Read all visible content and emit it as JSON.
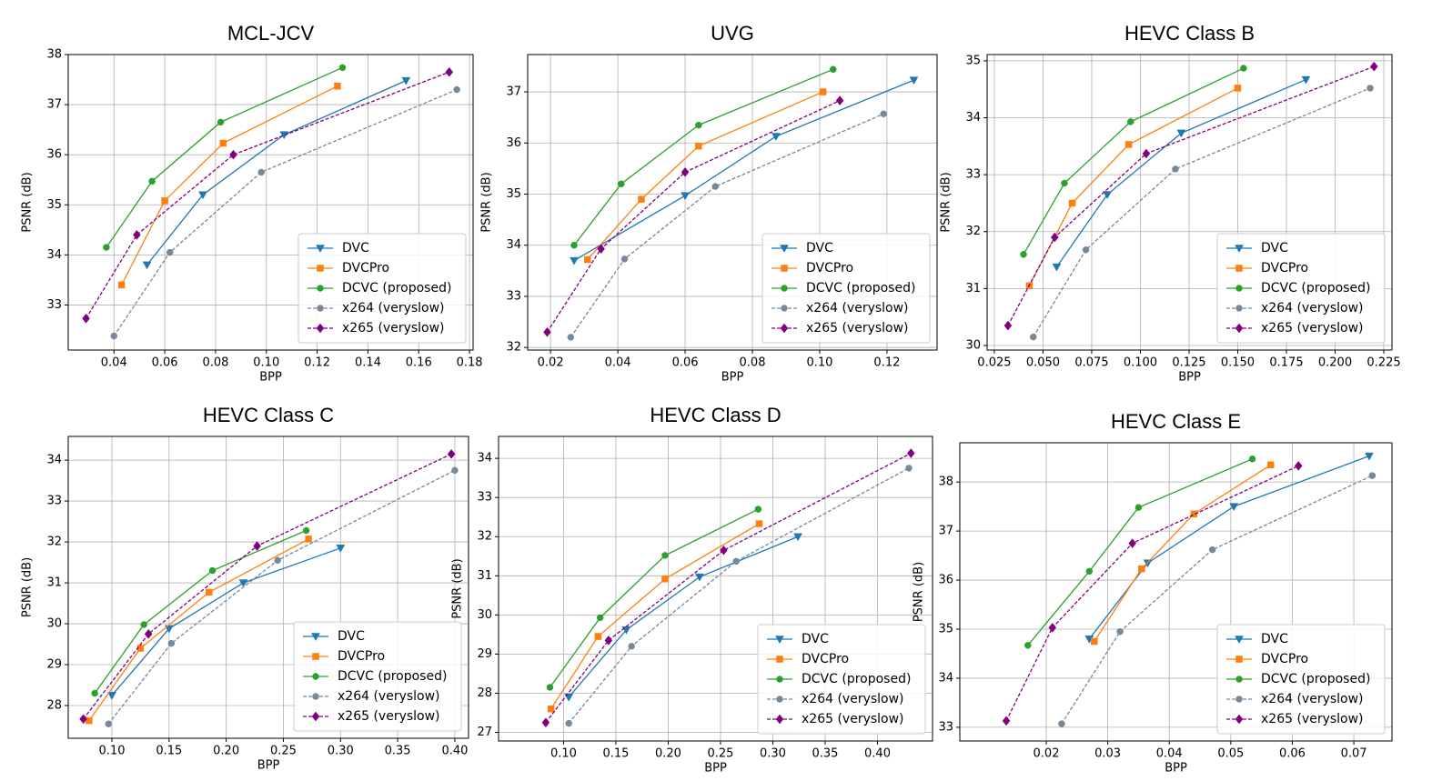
{
  "chart_data": [
    {
      "type": "line",
      "title": "MCL-JCV",
      "xlabel": "BPP",
      "ylabel": "PSNR (dB)",
      "grid": true,
      "legend": "lower right",
      "xlim": [
        0.022,
        0.1814
      ],
      "ylim": [
        32.1,
        38.0
      ],
      "xticks": [
        0.04,
        0.06,
        0.08,
        {
          "value": 0.1,
          "label": "0.10"
        },
        0.12,
        0.14,
        0.16,
        0.18
      ],
      "yticks": [
        33,
        34,
        35,
        36,
        37,
        38
      ],
      "series": [
        {
          "name": "DVC",
          "color": "#1f77b4",
          "marker": "triangle-down",
          "linestyle": "solid",
          "x": [
            0.053,
            0.075,
            0.107,
            0.155
          ],
          "values": [
            33.8,
            35.2,
            36.4,
            37.48
          ]
        },
        {
          "name": "DVCPro",
          "color": "#ff7f0e",
          "marker": "square",
          "linestyle": "solid",
          "x": [
            0.043,
            0.06,
            0.083,
            0.128
          ],
          "values": [
            33.4,
            35.08,
            36.23,
            37.37
          ]
        },
        {
          "name": "DCVC (proposed)",
          "color": "#2ca02c",
          "marker": "circle",
          "linestyle": "solid",
          "x": [
            0.037,
            0.055,
            0.082,
            0.13
          ],
          "values": [
            34.15,
            35.47,
            36.65,
            37.74
          ]
        },
        {
          "name": "x264 (veryslow)",
          "color": "#778899",
          "marker": "circle",
          "linestyle": "dashed",
          "x": [
            0.04,
            0.062,
            0.098,
            0.175
          ],
          "values": [
            32.38,
            34.05,
            35.65,
            37.3
          ]
        },
        {
          "name": "x265 (veryslow)",
          "color": "#800080",
          "marker": "diamond",
          "linestyle": "dashed",
          "x": [
            0.029,
            0.049,
            0.087,
            0.172
          ],
          "values": [
            32.73,
            34.4,
            36.0,
            37.65
          ]
        }
      ]
    },
    {
      "type": "line",
      "title": "UVG",
      "xlabel": "BPP",
      "ylabel": "PSNR (dB)",
      "grid": true,
      "legend": "lower right",
      "xlim": [
        0.0132,
        0.1349
      ],
      "ylim": [
        31.95,
        37.73
      ],
      "xticks": [
        0.02,
        0.04,
        0.06,
        0.08,
        {
          "value": 0.1,
          "label": "0.10"
        },
        0.12
      ],
      "yticks": [
        32,
        33,
        34,
        35,
        36,
        37
      ],
      "series": [
        {
          "name": "DVC",
          "color": "#1f77b4",
          "marker": "triangle-down",
          "linestyle": "solid",
          "x": [
            0.027,
            0.06,
            0.087,
            0.128
          ],
          "values": [
            33.7,
            34.97,
            36.13,
            37.23
          ]
        },
        {
          "name": "DVCPro",
          "color": "#ff7f0e",
          "marker": "square",
          "linestyle": "solid",
          "x": [
            0.031,
            0.047,
            0.064,
            0.101
          ],
          "values": [
            33.72,
            34.9,
            35.94,
            37.0
          ]
        },
        {
          "name": "DCVC (proposed)",
          "color": "#2ca02c",
          "marker": "circle",
          "linestyle": "solid",
          "x": [
            0.027,
            0.041,
            0.064,
            0.104
          ],
          "values": [
            34.0,
            35.2,
            36.35,
            37.44
          ]
        },
        {
          "name": "x264 (veryslow)",
          "color": "#778899",
          "marker": "circle",
          "linestyle": "dashed",
          "x": [
            0.026,
            0.042,
            0.069,
            0.119
          ],
          "values": [
            32.2,
            33.73,
            35.15,
            36.57
          ]
        },
        {
          "name": "x265 (veryslow)",
          "color": "#800080",
          "marker": "diamond",
          "linestyle": "dashed",
          "x": [
            0.019,
            0.035,
            0.06,
            0.106
          ],
          "values": [
            32.3,
            33.93,
            35.43,
            36.83
          ]
        }
      ]
    },
    {
      "type": "line",
      "title": "HEVC Class B",
      "xlabel": "BPP",
      "ylabel": "PSNR (dB)",
      "grid": true,
      "legend": "lower right",
      "xlim": [
        0.0213,
        0.2292
      ],
      "ylim": [
        29.92,
        35.11
      ],
      "xticks": [
        0.025,
        {
          "value": 0.05,
          "label": "0.050"
        },
        0.075,
        {
          "value": 0.1,
          "label": "0.100"
        },
        0.125,
        {
          "value": 0.15,
          "label": "0.150"
        },
        0.175,
        {
          "value": 0.2,
          "label": "0.200"
        },
        0.225
      ],
      "yticks": [
        30,
        31,
        32,
        33,
        34,
        35
      ],
      "series": [
        {
          "name": "DVC",
          "color": "#1f77b4",
          "marker": "triangle-down",
          "linestyle": "solid",
          "x": [
            0.057,
            0.083,
            0.121,
            0.185
          ],
          "values": [
            31.38,
            32.65,
            33.73,
            34.67
          ]
        },
        {
          "name": "DVCPro",
          "color": "#ff7f0e",
          "marker": "square",
          "linestyle": "solid",
          "x": [
            0.043,
            0.065,
            0.094,
            0.15
          ],
          "values": [
            31.05,
            32.5,
            33.53,
            34.52
          ]
        },
        {
          "name": "DCVC (proposed)",
          "color": "#2ca02c",
          "marker": "circle",
          "linestyle": "solid",
          "x": [
            0.04,
            0.061,
            0.095,
            0.153
          ],
          "values": [
            31.6,
            32.85,
            33.93,
            34.87
          ]
        },
        {
          "name": "x264 (veryslow)",
          "color": "#778899",
          "marker": "circle",
          "linestyle": "dashed",
          "x": [
            0.045,
            0.072,
            0.118,
            0.218
          ],
          "values": [
            30.15,
            31.68,
            33.1,
            34.52
          ]
        },
        {
          "name": "x265 (veryslow)",
          "color": "#800080",
          "marker": "diamond",
          "linestyle": "dashed",
          "x": [
            0.032,
            0.056,
            0.103,
            0.22
          ],
          "values": [
            30.35,
            31.9,
            33.37,
            34.9
          ]
        }
      ]
    },
    {
      "type": "line",
      "title": "HEVC Class C",
      "xlabel": "BPP",
      "ylabel": "PSNR (dB)",
      "grid": true,
      "legend": "lower right",
      "xlim": [
        0.0618,
        0.412
      ],
      "ylim": [
        27.2,
        34.58
      ],
      "xticks": [
        {
          "value": 0.1,
          "label": "0.10"
        },
        0.15,
        {
          "value": 0.2,
          "label": "0.20"
        },
        0.25,
        {
          "value": 0.3,
          "label": "0.30"
        },
        0.35,
        {
          "value": 0.4,
          "label": "0.40"
        }
      ],
      "yticks": [
        28,
        29,
        30,
        31,
        32,
        33,
        34
      ],
      "series": [
        {
          "name": "DVC",
          "color": "#1f77b4",
          "marker": "triangle-down",
          "linestyle": "solid",
          "x": [
            0.1,
            0.15,
            0.215,
            0.3
          ],
          "values": [
            28.25,
            29.88,
            31.0,
            31.85
          ]
        },
        {
          "name": "DVCPro",
          "color": "#ff7f0e",
          "marker": "square",
          "linestyle": "solid",
          "x": [
            0.08,
            0.125,
            0.185,
            0.272
          ],
          "values": [
            27.63,
            29.4,
            30.77,
            32.07
          ]
        },
        {
          "name": "DCVC (proposed)",
          "color": "#2ca02c",
          "marker": "circle",
          "linestyle": "solid",
          "x": [
            0.085,
            0.128,
            0.188,
            0.27
          ],
          "values": [
            28.3,
            29.98,
            31.3,
            32.28
          ]
        },
        {
          "name": "x264 (veryslow)",
          "color": "#778899",
          "marker": "circle",
          "linestyle": "dashed",
          "x": [
            0.097,
            0.152,
            0.245,
            0.4
          ],
          "values": [
            27.55,
            29.52,
            31.55,
            33.75
          ]
        },
        {
          "name": "x265 (veryslow)",
          "color": "#800080",
          "marker": "diamond",
          "linestyle": "dashed",
          "x": [
            0.075,
            0.132,
            0.227,
            0.397
          ],
          "values": [
            27.67,
            29.75,
            31.9,
            34.15
          ]
        }
      ]
    },
    {
      "type": "line",
      "title": "HEVC Class D",
      "xlabel": "BPP",
      "ylabel": "PSNR (dB)",
      "grid": true,
      "legend": "lower right",
      "xlim": [
        0.0379,
        0.4526
      ],
      "ylim": [
        26.78,
        34.56
      ],
      "xticks": [
        {
          "value": 0.1,
          "label": "0.10"
        },
        0.15,
        {
          "value": 0.2,
          "label": "0.20"
        },
        0.25,
        {
          "value": 0.3,
          "label": "0.30"
        },
        0.35,
        {
          "value": 0.4,
          "label": "0.40"
        }
      ],
      "yticks": [
        27,
        28,
        29,
        30,
        31,
        32,
        33,
        34
      ],
      "series": [
        {
          "name": "DVC",
          "color": "#1f77b4",
          "marker": "triangle-down",
          "linestyle": "solid",
          "x": [
            0.105,
            0.16,
            0.23,
            0.324
          ],
          "values": [
            27.9,
            29.62,
            30.97,
            32.0
          ]
        },
        {
          "name": "DVCPro",
          "color": "#ff7f0e",
          "marker": "square",
          "linestyle": "solid",
          "x": [
            0.088,
            0.133,
            0.197,
            0.287
          ],
          "values": [
            27.6,
            29.45,
            30.92,
            32.33
          ]
        },
        {
          "name": "DCVC (proposed)",
          "color": "#2ca02c",
          "marker": "circle",
          "linestyle": "solid",
          "x": [
            0.087,
            0.135,
            0.197,
            0.286
          ],
          "values": [
            28.15,
            29.93,
            31.52,
            32.7
          ]
        },
        {
          "name": "x264 (veryslow)",
          "color": "#778899",
          "marker": "circle",
          "linestyle": "dashed",
          "x": [
            0.105,
            0.165,
            0.265,
            0.43
          ],
          "values": [
            27.23,
            29.2,
            31.37,
            33.75
          ]
        },
        {
          "name": "x265 (veryslow)",
          "color": "#800080",
          "marker": "diamond",
          "linestyle": "dashed",
          "x": [
            0.083,
            0.143,
            0.253,
            0.432
          ],
          "values": [
            27.25,
            29.35,
            31.65,
            34.13
          ]
        }
      ]
    },
    {
      "type": "line",
      "title": "HEVC Class E",
      "xlabel": "BPP",
      "ylabel": "PSNR (dB)",
      "grid": true,
      "legend": "lower right",
      "xlim": [
        0.00595,
        0.0762
      ],
      "ylim": [
        32.72,
        38.8
      ],
      "xticks": [
        0.02,
        0.03,
        0.04,
        0.05,
        0.06,
        0.07
      ],
      "yticks": [
        33,
        34,
        35,
        36,
        37,
        38
      ],
      "series": [
        {
          "name": "DVC",
          "color": "#1f77b4",
          "marker": "triangle-down",
          "linestyle": "solid",
          "x": [
            0.027,
            0.0365,
            0.0505,
            0.0725
          ],
          "values": [
            34.8,
            36.35,
            37.5,
            38.53
          ]
        },
        {
          "name": "DVCPro",
          "color": "#ff7f0e",
          "marker": "square",
          "linestyle": "solid",
          "x": [
            0.0278,
            0.0355,
            0.044,
            0.0565
          ],
          "values": [
            34.75,
            36.23,
            37.35,
            38.35
          ]
        },
        {
          "name": "DCVC (proposed)",
          "color": "#2ca02c",
          "marker": "circle",
          "linestyle": "solid",
          "x": [
            0.017,
            0.027,
            0.035,
            0.0535
          ],
          "values": [
            34.67,
            36.18,
            37.48,
            38.47
          ]
        },
        {
          "name": "x264 (veryslow)",
          "color": "#778899",
          "marker": "circle",
          "linestyle": "dashed",
          "x": [
            0.0225,
            0.032,
            0.047,
            0.073
          ],
          "values": [
            33.07,
            34.95,
            36.62,
            38.13
          ]
        },
        {
          "name": "x265 (veryslow)",
          "color": "#800080",
          "marker": "diamond",
          "linestyle": "dashed",
          "x": [
            0.0135,
            0.021,
            0.034,
            0.061
          ],
          "values": [
            33.13,
            35.03,
            36.75,
            38.33
          ]
        }
      ]
    }
  ]
}
